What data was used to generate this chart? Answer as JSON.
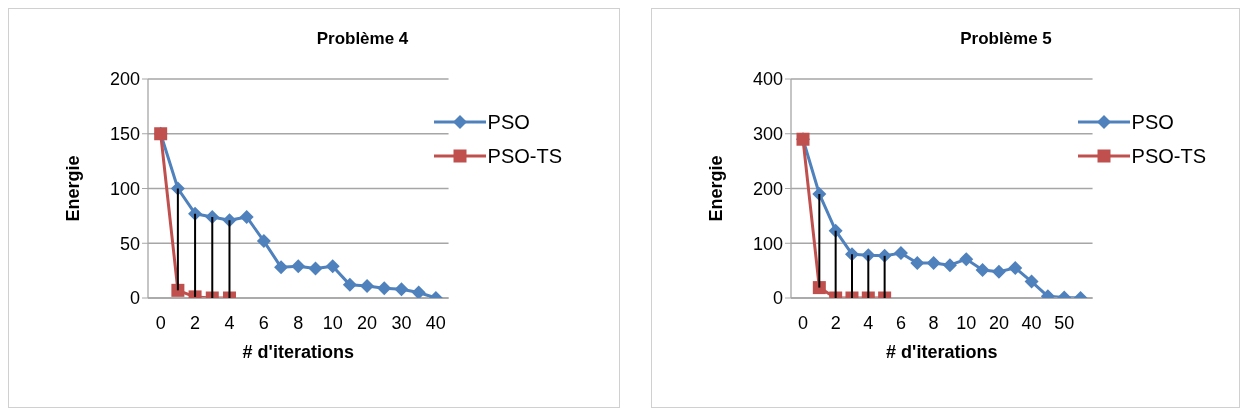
{
  "chart_data": [
    {
      "type": "line",
      "title": "Problème 4",
      "xlabel": "# d'iterations",
      "ylabel": "Energie",
      "categories": [
        "0",
        null,
        "2",
        null,
        "4",
        null,
        "6",
        null,
        "8",
        null,
        "10",
        null,
        "20",
        null,
        "30",
        null,
        "40"
      ],
      "series": [
        {
          "name": "PSO",
          "color": "#4f81bd",
          "marker": "diamond",
          "values": [
            150,
            100,
            77,
            74,
            71,
            74,
            52,
            28,
            29,
            27,
            29,
            12,
            11,
            9,
            8,
            5,
            0
          ]
        },
        {
          "name": "PSO-TS",
          "color": "#c0504d",
          "marker": "square",
          "values": [
            150,
            7,
            1,
            0,
            0,
            null,
            null,
            null,
            null,
            null,
            null,
            null,
            null,
            null,
            null,
            null,
            null
          ]
        }
      ],
      "ylim": [
        0,
        200
      ],
      "yticks": [
        0,
        50,
        100,
        150,
        200
      ],
      "grid": "y",
      "legend": "top right"
    },
    {
      "type": "line",
      "title": "Problème 5",
      "xlabel": "# d'iterations",
      "ylabel": "Energie",
      "categories": [
        "0",
        null,
        "2",
        null,
        "4",
        null,
        "6",
        null,
        "8",
        null,
        "10",
        null,
        "20",
        null,
        "40",
        null,
        "50",
        null
      ],
      "series": [
        {
          "name": "PSO",
          "color": "#4f81bd",
          "marker": "diamond",
          "values": [
            290,
            190,
            123,
            80,
            78,
            77,
            82,
            64,
            64,
            60,
            71,
            51,
            48,
            55,
            30,
            3,
            1,
            0
          ]
        },
        {
          "name": "PSO-TS",
          "color": "#c0504d",
          "marker": "square",
          "values": [
            290,
            19,
            0,
            0,
            0,
            0,
            null,
            null,
            null,
            null,
            null,
            null,
            null,
            null,
            null,
            null,
            null,
            null
          ]
        }
      ],
      "ylim": [
        0,
        400
      ],
      "yticks": [
        0,
        100,
        200,
        300,
        400
      ],
      "grid": "y",
      "legend": "top right"
    }
  ]
}
